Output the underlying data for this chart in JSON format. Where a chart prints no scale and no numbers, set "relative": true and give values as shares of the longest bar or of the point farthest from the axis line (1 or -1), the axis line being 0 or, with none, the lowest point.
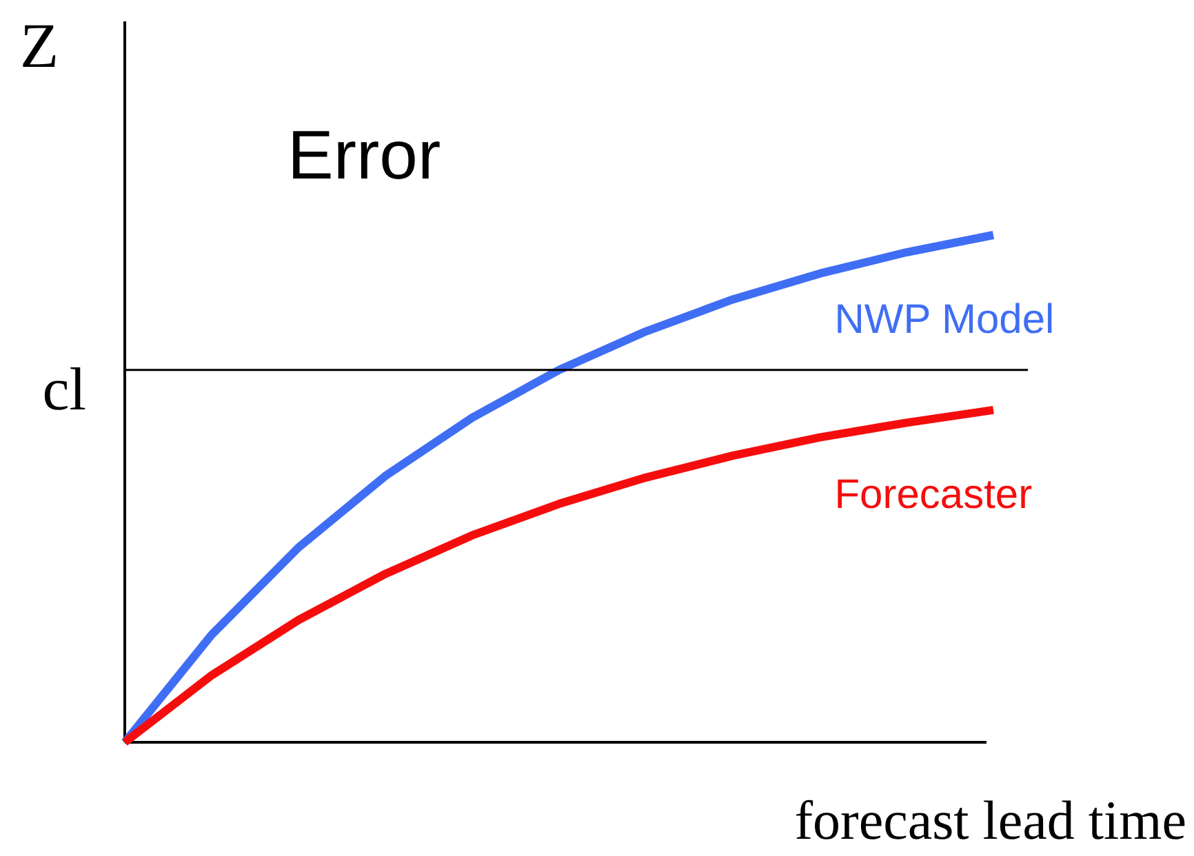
{
  "chart_data": {
    "type": "line",
    "title": "Error",
    "xlabel": "forecast lead time",
    "ylabel": "Z",
    "relative": true,
    "categories": [
      null,
      null,
      null,
      null,
      null,
      null,
      null,
      null,
      null,
      null,
      null
    ],
    "series": [
      {
        "name": "NWP Model",
        "color": "#3f6ef5",
        "values": [
          0,
          0.212,
          0.384,
          0.525,
          0.64,
          0.734,
          0.81,
          0.873,
          0.924,
          0.966,
          1
        ]
      },
      {
        "name": "Forecaster",
        "color": "#f50d0d",
        "values": [
          0,
          0.132,
          0.241,
          0.332,
          0.408,
          0.47,
          0.522,
          0.565,
          0.601,
          0.63,
          0.655
        ]
      }
    ],
    "ref_lines": [
      {
        "axis": "y",
        "value": 0.734,
        "label": "cl",
        "color": "#000000"
      }
    ],
    "legend": false
  }
}
